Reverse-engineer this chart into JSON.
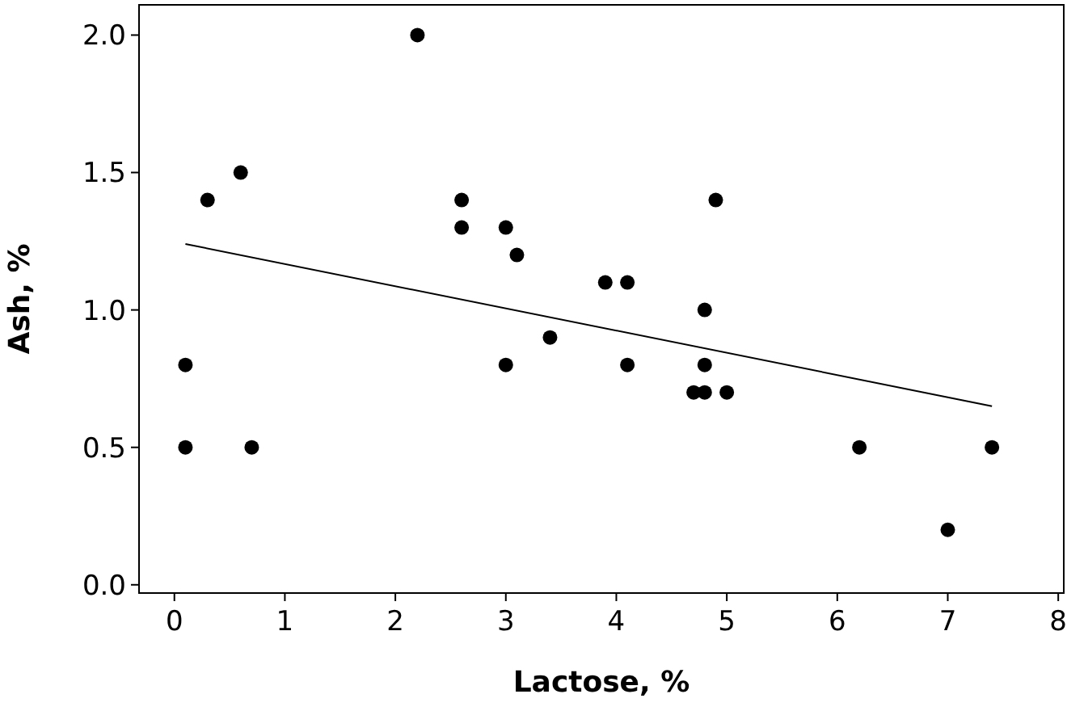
{
  "chart_data": {
    "type": "scatter",
    "xlabel": "Lactose, %",
    "ylabel": "Ash, %",
    "xlim": [
      -0.32,
      8.05
    ],
    "ylim": [
      -0.03,
      2.11
    ],
    "xticks": [
      0,
      1,
      2,
      3,
      4,
      5,
      6,
      7,
      8
    ],
    "yticks": [
      {
        "value": 0,
        "label": "0.0"
      },
      {
        "value": 0.5,
        "label": "0.5"
      },
      {
        "value": 1,
        "label": "1.0"
      },
      {
        "value": 1.5,
        "label": "1.5"
      },
      {
        "value": 2,
        "label": "2.0"
      }
    ],
    "marker": "circle",
    "grid": false,
    "series": [
      {
        "color": "#000000",
        "x": [
          0.1,
          0.1,
          0.3,
          0.6,
          0.7,
          2.2,
          2.6,
          2.6,
          3.0,
          3.1,
          3.0,
          3.4,
          3.9,
          4.1,
          4.1,
          4.7,
          4.8,
          4.8,
          4.8,
          4.9,
          5.0,
          6.2,
          7.0,
          7.4
        ],
        "values": [
          0.8,
          0.5,
          1.4,
          1.5,
          0.5,
          2.0,
          1.4,
          1.3,
          1.3,
          1.2,
          0.8,
          0.9,
          1.1,
          1.1,
          0.8,
          0.7,
          0.7,
          0.8,
          1.0,
          1.4,
          0.7,
          0.5,
          0.2,
          0.5
        ]
      },
      {
        "type": "line",
        "color": "#000000",
        "x": [
          0.1,
          7.4
        ],
        "values": [
          1.24,
          0.65
        ],
        "marker": "none",
        "line_style": "solid"
      }
    ]
  }
}
